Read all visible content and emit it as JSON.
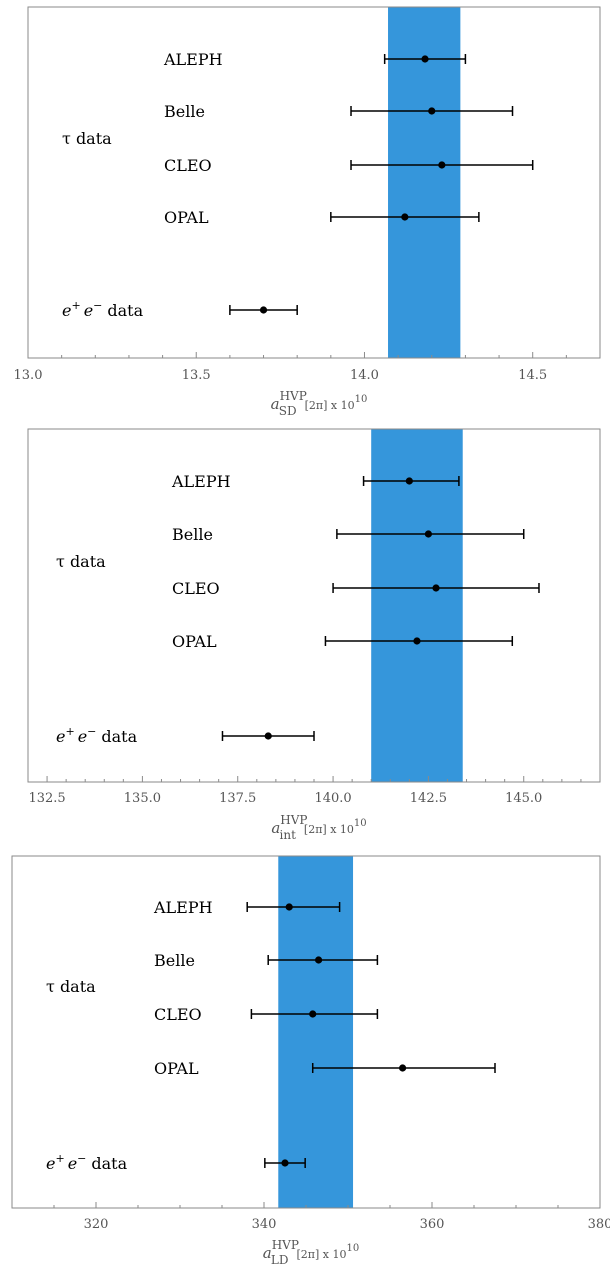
{
  "chart_data": [
    {
      "type": "scatter",
      "title": "",
      "xlabel": {
        "base": "a",
        "sub": "SD",
        "sup": "HVP",
        "tail": "[2π] x 10",
        "tail_sup": "10"
      },
      "xlim": [
        13.0,
        14.7
      ],
      "xticks": [
        13.0,
        13.5,
        14.0,
        14.5
      ],
      "xtick_labels": [
        "13.0",
        "13.5",
        "14.0",
        "14.5"
      ],
      "band": [
        14.07,
        14.285
      ],
      "band_color": "#3596db",
      "group_label": "τ data",
      "points": [
        {
          "label": "ALEPH",
          "value": 14.18,
          "low": 14.06,
          "high": 14.3
        },
        {
          "label": "Belle",
          "value": 14.2,
          "low": 13.96,
          "high": 14.44
        },
        {
          "label": "CLEO",
          "value": 14.23,
          "low": 13.96,
          "high": 14.5
        },
        {
          "label": "OPAL",
          "value": 14.12,
          "low": 13.9,
          "high": 14.34
        },
        {
          "label": "data",
          "label_base": "e",
          "label_sup1": "+",
          "label_mid": "e",
          "label_sup2": "−",
          "value": 13.7,
          "low": 13.6,
          "high": 13.8
        }
      ]
    },
    {
      "type": "scatter",
      "title": "",
      "xlabel": {
        "base": "a",
        "sub": "int",
        "sup": "HVP",
        "tail": "[2π] x 10",
        "tail_sup": "10"
      },
      "xlim": [
        132.0,
        147.0
      ],
      "xticks": [
        132.5,
        135.0,
        137.5,
        140.0,
        142.5,
        145.0
      ],
      "xtick_labels": [
        "132.5",
        "135.0",
        "137.5",
        "140.0",
        "142.5",
        "145.0"
      ],
      "band": [
        141.0,
        143.4
      ],
      "band_color": "#3596db",
      "group_label": "τ data",
      "points": [
        {
          "label": "ALEPH",
          "value": 142.0,
          "low": 140.8,
          "high": 143.3
        },
        {
          "label": "Belle",
          "value": 142.5,
          "low": 140.1,
          "high": 145.0
        },
        {
          "label": "CLEO",
          "value": 142.7,
          "low": 140.0,
          "high": 145.4
        },
        {
          "label": "OPAL",
          "value": 142.2,
          "low": 139.8,
          "high": 144.7
        },
        {
          "label": "data",
          "label_base": "e",
          "label_sup1": "+",
          "label_mid": "e",
          "label_sup2": "−",
          "value": 138.3,
          "low": 137.1,
          "high": 139.5
        }
      ]
    },
    {
      "type": "scatter",
      "title": "",
      "xlabel": {
        "base": "a",
        "sub": "LD",
        "sup": "HVP",
        "tail": "[2π] x 10",
        "tail_sup": "10"
      },
      "xlim": [
        310.0,
        380.0
      ],
      "xticks": [
        320,
        340,
        360,
        380
      ],
      "xtick_labels": [
        "320",
        "340",
        "360",
        "380"
      ],
      "minor_xticks": [
        315,
        325,
        330,
        335,
        345,
        350,
        355,
        365,
        370,
        375
      ],
      "band": [
        341.7,
        350.6
      ],
      "band_color": "#3596db",
      "group_label": "τ data",
      "points": [
        {
          "label": "ALEPH",
          "value": 343.0,
          "low": 338.0,
          "high": 349.0
        },
        {
          "label": "Belle",
          "value": 346.5,
          "low": 340.5,
          "high": 353.5
        },
        {
          "label": "CLEO",
          "value": 345.8,
          "low": 338.5,
          "high": 353.5
        },
        {
          "label": "OPAL",
          "value": 356.5,
          "low": 345.8,
          "high": 367.5
        },
        {
          "label": "data",
          "label_base": "e",
          "label_sup1": "+",
          "label_mid": "e",
          "label_sup2": "−",
          "value": 342.5,
          "low": 340.1,
          "high": 344.9
        }
      ]
    }
  ]
}
